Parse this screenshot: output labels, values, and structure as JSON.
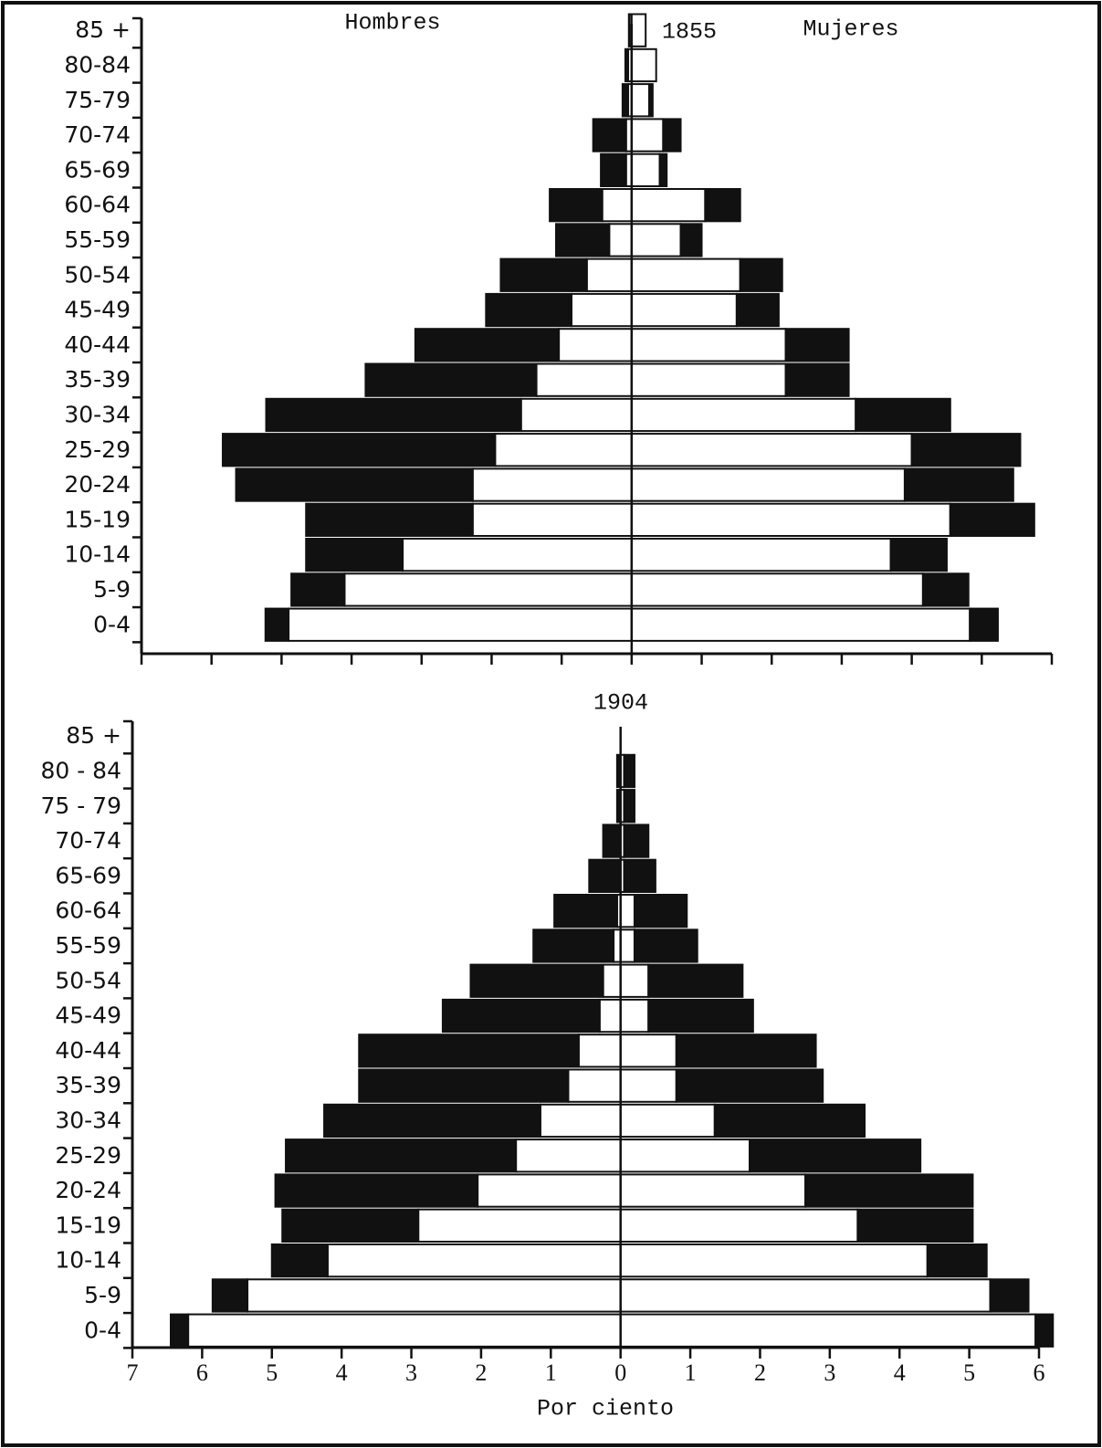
{
  "chart_data": [
    {
      "type": "pyramid",
      "title": "1855",
      "left_label": "Hombres",
      "right_label": "Mujeres",
      "categories": [
        "85 +",
        "80-84",
        "75-79",
        "70-74",
        "65-69",
        "60-64",
        "55-59",
        "50-54",
        "45-49",
        "40-44",
        "35-39",
        "30-34",
        "25-29",
        "20-24",
        "15-19",
        "10-14",
        "5-9",
        "0-4"
      ],
      "series": [
        {
          "color": "#ffffff",
          "men": [
            0.03,
            0.05,
            0.05,
            0.08,
            0.08,
            0.42,
            0.32,
            0.64,
            0.86,
            1.04,
            1.36,
            1.58,
            1.95,
            2.27,
            2.27,
            3.27,
            4.1,
            4.9
          ],
          "women": [
            0.2,
            0.35,
            0.25,
            0.45,
            0.4,
            1.05,
            0.7,
            1.55,
            1.5,
            2.2,
            2.2,
            3.2,
            4.0,
            3.9,
            4.55,
            3.7,
            4.16,
            4.83
          ]
        },
        {
          "color": "#111111",
          "men": [
            0.01,
            0.04,
            0.08,
            0.47,
            0.36,
            0.75,
            0.76,
            1.23,
            1.22,
            2.05,
            2.44,
            3.64,
            3.89,
            3.38,
            2.38,
            1.38,
            0.76,
            0.33
          ],
          "women": [
            0,
            0,
            0.05,
            0.25,
            0.1,
            0.5,
            0.3,
            0.6,
            0.6,
            0.9,
            0.9,
            1.35,
            1.55,
            1.55,
            1.2,
            0.8,
            0.65,
            0.4
          ]
        }
      ],
      "xlim": [
        -7,
        6
      ],
      "xticks": [
        {
          "value": -7
        },
        {
          "value": -6
        },
        {
          "value": -5
        },
        {
          "value": -4
        },
        {
          "value": -3
        },
        {
          "value": -2
        },
        {
          "value": -1
        },
        {
          "value": 0
        },
        {
          "value": 1
        },
        {
          "value": 2
        },
        {
          "value": 3
        },
        {
          "value": 4
        },
        {
          "value": 5
        },
        {
          "value": 6
        }
      ]
    },
    {
      "type": "pyramid",
      "title": "1904",
      "xlabel": "Por ciento",
      "categories": [
        "85 +",
        "80 - 84",
        "75 - 79",
        "70-74",
        "65-69",
        "60-64",
        "55-59",
        "50-54",
        "45-49",
        "40-44",
        "35-39",
        "30-34",
        "25-29",
        "20-24",
        "15-19",
        "10-14",
        "5-9",
        "0-4"
      ],
      "series": [
        {
          "color": "#ffffff",
          "men": [
            0,
            0,
            0,
            0,
            0,
            0.05,
            0.1,
            0.25,
            0.3,
            0.6,
            0.75,
            1.15,
            1.5,
            2.05,
            2.9,
            4.2,
            5.35,
            6.2
          ],
          "women": [
            0,
            0.05,
            0.05,
            0.05,
            0.05,
            0.2,
            0.2,
            0.4,
            0.4,
            0.8,
            0.8,
            1.35,
            1.85,
            2.65,
            3.4,
            4.4,
            5.3,
            5.95
          ]
        },
        {
          "color": "#111111",
          "men": [
            0,
            0.05,
            0.05,
            0.25,
            0.45,
            0.9,
            1.15,
            1.9,
            2.25,
            3.15,
            3.0,
            3.1,
            3.3,
            2.9,
            1.95,
            0.8,
            0.5,
            0.25
          ],
          "women": [
            0,
            0.15,
            0.15,
            0.35,
            0.45,
            0.75,
            0.9,
            1.35,
            1.5,
            2.0,
            2.1,
            2.15,
            2.45,
            2.4,
            1.65,
            0.85,
            0.55,
            0.25
          ]
        }
      ],
      "xlim": [
        -7,
        6
      ],
      "xticks": [
        {
          "value": -7,
          "label": "7"
        },
        {
          "value": -6,
          "label": "6"
        },
        {
          "value": -5,
          "label": "5"
        },
        {
          "value": -4,
          "label": "4"
        },
        {
          "value": -3,
          "label": "3"
        },
        {
          "value": -2,
          "label": "2"
        },
        {
          "value": -1,
          "label": "1"
        },
        {
          "value": 0,
          "label": "0"
        },
        {
          "value": 1,
          "label": "1"
        },
        {
          "value": 2,
          "label": "2"
        },
        {
          "value": 3,
          "label": "3"
        },
        {
          "value": 4,
          "label": "4"
        },
        {
          "value": 5,
          "label": "5"
        },
        {
          "value": 6,
          "label": "6"
        }
      ]
    }
  ]
}
